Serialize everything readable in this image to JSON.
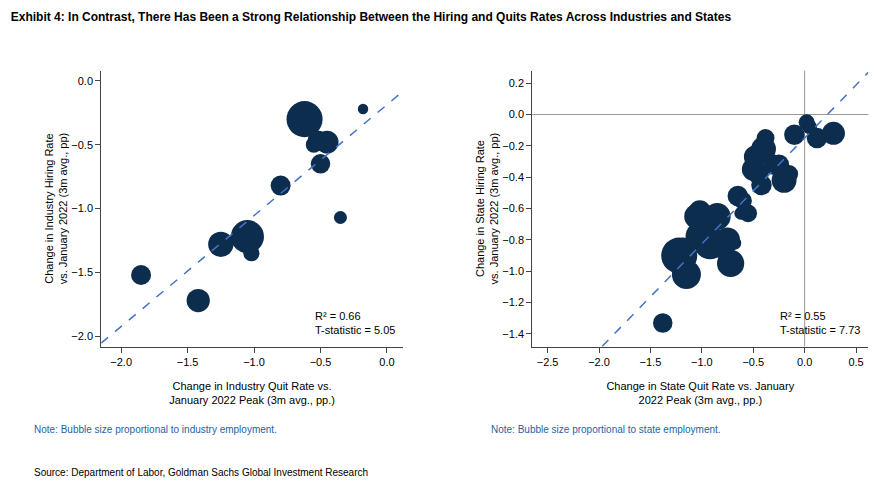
{
  "title": "Exhibit 4: In Contrast, There Has Been a Strong Relationship Between the Hiring and Quits Rates Across Industries and States",
  "source": "Source: Department of Labor, Goldman Sachs Global Investment Research",
  "background_color": "#ffffff",
  "chart_data": [
    {
      "type": "scatter",
      "xlabel": "Change in Industry Quit Rate vs.\nJanuary 2022 Peak (3m avg., pp.)",
      "ylabel": "Change in Industry Hiring Rate\nvs. January 2022 (3m avg., pp)",
      "xlim": [
        -2.15,
        0.12
      ],
      "ylim": [
        -2.08,
        0.08
      ],
      "xticks": [
        {
          "value": -2.0,
          "label": "−2.0"
        },
        {
          "value": -1.5,
          "label": "−1.5"
        },
        {
          "value": -1.0,
          "label": "−1.0"
        },
        {
          "value": -0.5,
          "label": "−0.5"
        },
        {
          "value": 0.0,
          "label": "0.0"
        }
      ],
      "yticks": [
        {
          "value": 0.0,
          "label": "0.0"
        },
        {
          "value": -0.5,
          "label": "−0.5"
        },
        {
          "value": -1.0,
          "label": "−1.0"
        },
        {
          "value": -1.5,
          "label": "−1.5"
        },
        {
          "value": -2.0,
          "label": "−2.0"
        }
      ],
      "grid": false,
      "color": "#0d2d4f",
      "x": [
        -1.85,
        -1.42,
        -1.25,
        -1.05,
        -1.02,
        -0.8,
        -0.62,
        -0.55,
        -0.52,
        -0.5,
        -0.45,
        -0.35,
        -0.18
      ],
      "y": [
        -1.52,
        -1.72,
        -1.28,
        -1.22,
        -1.35,
        -0.82,
        -0.3,
        -0.5,
        -0.47,
        -0.65,
        -0.48,
        -1.07,
        -0.22
      ],
      "size": [
        200,
        270,
        320,
        550,
        130,
        200,
        650,
        130,
        210,
        190,
        260,
        85,
        55
      ],
      "trendline": {
        "x": [
          -2.15,
          0.12
        ],
        "y": [
          -2.0538,
          -0.0828
        ],
        "color": "#4472c4",
        "line_style": "dashed"
      },
      "annotation": "R² = 0.66\nT-statistic = 5.05",
      "note": "Note: Bubble size proportional to industry employment.",
      "note_color": "#1f5fa6"
    },
    {
      "type": "scatter",
      "xlabel": "Change in State Quit Rate vs. January\n2022 Peak (3m avg., pp.)",
      "ylabel": "Change in State Hiring Rate\nvs. January 2022 (3m avg., pp)",
      "xlim": [
        -2.65,
        0.62
      ],
      "ylim": [
        -1.48,
        0.28
      ],
      "xticks": [
        {
          "value": -2.5,
          "label": "−2.5"
        },
        {
          "value": -2.0,
          "label": "−2.0"
        },
        {
          "value": -1.5,
          "label": "−1.5"
        },
        {
          "value": -1.0,
          "label": "−1.0"
        },
        {
          "value": -0.5,
          "label": "−0.5"
        },
        {
          "value": 0.0,
          "label": "0.0"
        },
        0.5
      ],
      "yticks": [
        0.2,
        {
          "value": 0.0,
          "label": "0.0"
        },
        {
          "value": -0.2,
          "label": "−0.2"
        },
        {
          "value": -0.4,
          "label": "−0.4"
        },
        {
          "value": -0.6,
          "label": "−0.6"
        },
        {
          "value": -0.8,
          "label": "−0.8"
        },
        {
          "value": -1.0,
          "label": "−1.0"
        },
        {
          "value": -1.2,
          "label": "−1.2"
        },
        {
          "value": -1.4,
          "label": "−1.4"
        }
      ],
      "grid": false,
      "color": "#0d2d4f",
      "x": [
        -1.38,
        -1.22,
        -1.18,
        -1.15,
        -1.05,
        -1.02,
        -1.0,
        -0.92,
        -0.85,
        -0.82,
        -0.75,
        -0.72,
        -0.65,
        -0.6,
        -0.55,
        -0.5,
        -0.48,
        -0.45,
        -0.42,
        -0.4,
        -0.38,
        -0.3,
        -0.25,
        -0.2,
        -0.15,
        -0.1,
        0.02,
        0.05,
        0.12,
        0.28,
        -0.62,
        -0.68
      ],
      "y": [
        -1.33,
        -0.9,
        -0.85,
        -1.02,
        -0.65,
        -0.62,
        -0.78,
        -0.82,
        -0.65,
        -0.85,
        -0.8,
        -0.95,
        -0.52,
        -0.55,
        -0.63,
        -0.35,
        -0.27,
        -0.38,
        -0.45,
        -0.22,
        -0.15,
        -0.32,
        -0.32,
        -0.42,
        -0.38,
        -0.13,
        -0.05,
        -0.08,
        -0.15,
        -0.12,
        -0.63,
        -0.82
      ],
      "size": [
        190,
        650,
        210,
        420,
        310,
        260,
        530,
        530,
        360,
        210,
        310,
        370,
        210,
        160,
        160,
        260,
        260,
        210,
        210,
        310,
        160,
        210,
        210,
        310,
        160,
        210,
        130,
        105,
        210,
        265,
        85,
        85
      ],
      "trendline": {
        "x": [
          -1.9704,
          0.62
        ],
        "y": [
          -1.48,
          0.2689
        ],
        "color": "#4472c4",
        "line_style": "dashed"
      },
      "hlines": [
        0.0
      ],
      "vlines": [
        0.0
      ],
      "reference_line_color": "#999999",
      "annotation": "R² = 0.55\nT-statistic = 7.73",
      "note": "Note: Bubble size proportional to state employment.",
      "note_color": "#1f5fa6"
    }
  ]
}
